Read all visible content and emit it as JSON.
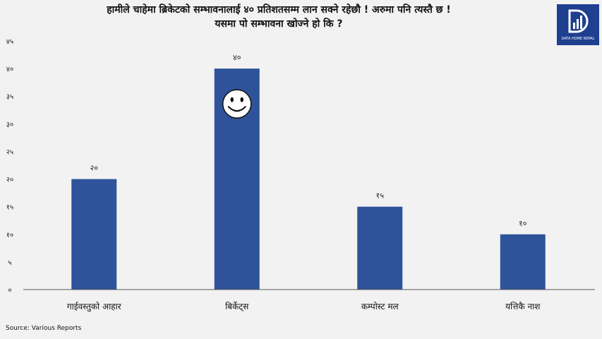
{
  "title_line1": "हामीले चाहेमा ब्रिकेटको सम्भावनालाई ४० प्रतिशतसम्म लान सक्ने रहेछौ ! अरुमा पनि त्यस्तै छ !",
  "title_line2": "यसमा पो सम्भावना खोज्ने हो कि ?",
  "logo_text": "DATA HOME NEPAL",
  "source": "Source:  Various Reports",
  "chart_data": {
    "type": "bar",
    "categories": [
      "गाईवस्तुको आहार",
      "बिर्केट्स",
      "कम्पोस्ट मल",
      "यत्तिकै नाश"
    ],
    "values": [
      20,
      40,
      15,
      10
    ],
    "data_labels": [
      "२०",
      "४०",
      "१५",
      "१०"
    ],
    "ylim": [
      0,
      45
    ],
    "yticks": [
      0,
      5,
      10,
      15,
      20,
      25,
      30,
      35,
      40,
      45
    ],
    "ytick_labels": [
      "०",
      "५",
      "१०",
      "१५",
      "२०",
      "२५",
      "३०",
      "३५",
      "४०",
      "४५"
    ],
    "bar_color": "#2e539a",
    "grid": false,
    "annotation_icon": "smiley-face-icon"
  }
}
